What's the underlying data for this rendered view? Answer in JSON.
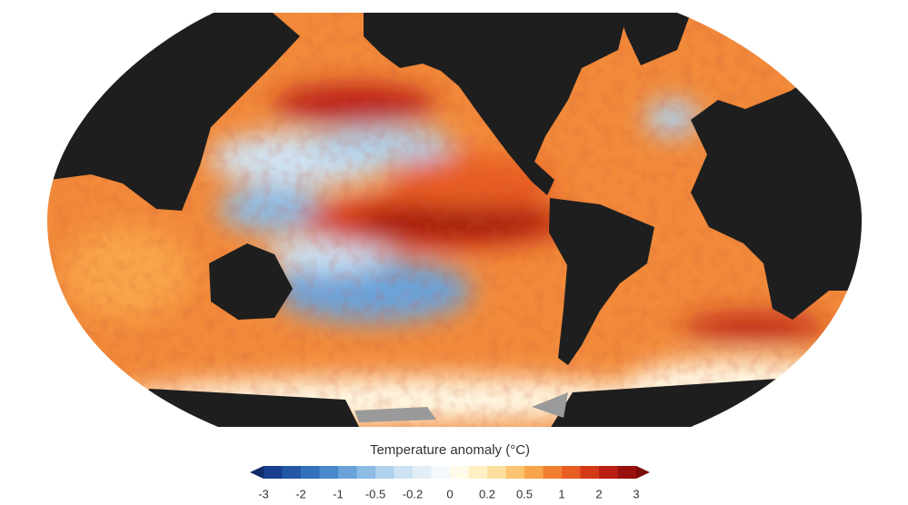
{
  "legend": {
    "title": "Temperature anomaly (°C)",
    "ticks": [
      -3,
      -2,
      -1,
      -0.5,
      -0.2,
      0,
      0.2,
      0.5,
      1,
      2,
      3
    ],
    "colors": [
      "#1a3f8f",
      "#2557a7",
      "#3270bc",
      "#4a88cc",
      "#6ba2d9",
      "#8cbbe4",
      "#aed1ed",
      "#cde3f3",
      "#e3eff8",
      "#f3f8fc",
      "#fffbe8",
      "#fff0c4",
      "#fde0a0",
      "#fcc470",
      "#f9a448",
      "#f38031",
      "#e85d22",
      "#d43a17",
      "#b91f12",
      "#98100c"
    ],
    "extend_colors": [
      "#122a6a",
      "#7a0a08"
    ]
  }
}
